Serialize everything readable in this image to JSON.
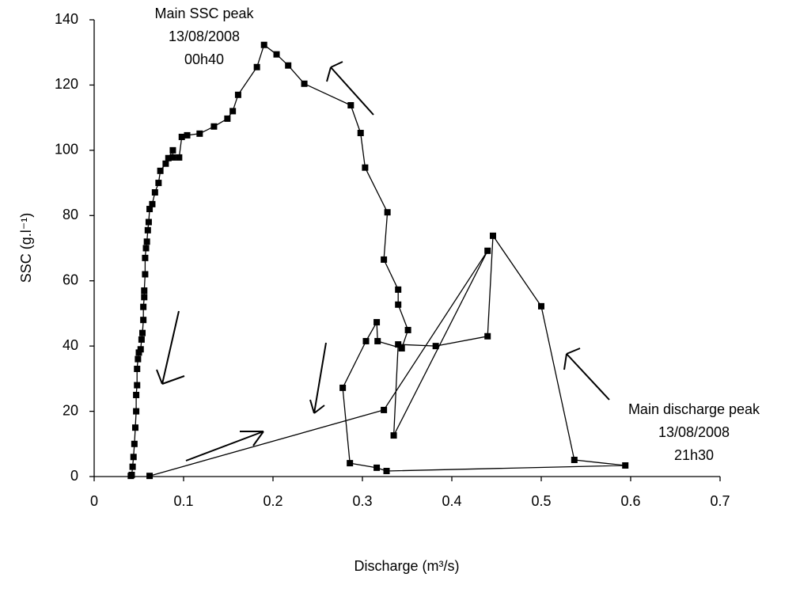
{
  "chart_data": {
    "type": "scatter",
    "x_label": "Discharge (m³/s)",
    "y_label": "SSC (g.l⁻¹)",
    "xlim": [
      0,
      0.7
    ],
    "xticks": [
      0,
      0.1,
      0.2,
      0.3,
      0.4,
      0.5,
      0.6,
      0.7
    ],
    "ylim": [
      0,
      140
    ],
    "yticks": [
      0,
      20,
      40,
      60,
      80,
      100,
      120,
      140
    ],
    "color": "#000000",
    "x": [
      0.062,
      0.324,
      0.44,
      0.335,
      0.34,
      0.382,
      0.44,
      0.446,
      0.5,
      0.537,
      0.594,
      0.327,
      0.316,
      0.286,
      0.278,
      0.304,
      0.316,
      0.317,
      0.344,
      0.351,
      0.34,
      0.34,
      0.324,
      0.328,
      0.303,
      0.298,
      0.287,
      0.235,
      0.217,
      0.204,
      0.19,
      0.182,
      0.161,
      0.155,
      0.149,
      0.134,
      0.118,
      0.104,
      0.098,
      0.095,
      0.088,
      0.088,
      0.083,
      0.08,
      0.074,
      0.072,
      0.068,
      0.065,
      0.062,
      0.061,
      0.06,
      0.059,
      0.058,
      0.057,
      0.057,
      0.056,
      0.056,
      0.055,
      0.055,
      0.054,
      0.053,
      0.052,
      0.05,
      0.049,
      0.048,
      0.048,
      0.047,
      0.047,
      0.046,
      0.045,
      0.044,
      0.043,
      0.042,
      0.041
    ],
    "values": [
      0.2,
      20.4,
      69.2,
      12.6,
      40.5,
      40,
      43,
      73.8,
      52.2,
      5.1,
      3.4,
      1.7,
      2.7,
      4.1,
      27.2,
      41.5,
      47.3,
      41.5,
      39.3,
      44.9,
      52.7,
      57.3,
      66.5,
      81,
      94.7,
      105.3,
      113.8,
      120.4,
      126,
      129.4,
      132.3,
      125.5,
      117,
      112,
      109.7,
      107.3,
      105.1,
      104.6,
      104.1,
      97.8,
      97.8,
      100,
      97.6,
      95.9,
      93.7,
      90,
      87.1,
      83.5,
      82,
      78,
      75.5,
      72,
      70,
      67,
      62,
      57,
      55,
      52,
      48,
      44,
      42,
      39,
      38,
      36,
      33,
      28,
      25,
      20,
      15,
      10,
      6,
      3,
      0.5,
      0.2
    ],
    "annotations": [
      {
        "lines": [
          "Main SSC peak",
          "13/08/2008",
          "00h40"
        ]
      },
      {
        "lines": [
          "Main discharge peak",
          "13/08/2008",
          "21h30"
        ]
      }
    ]
  }
}
